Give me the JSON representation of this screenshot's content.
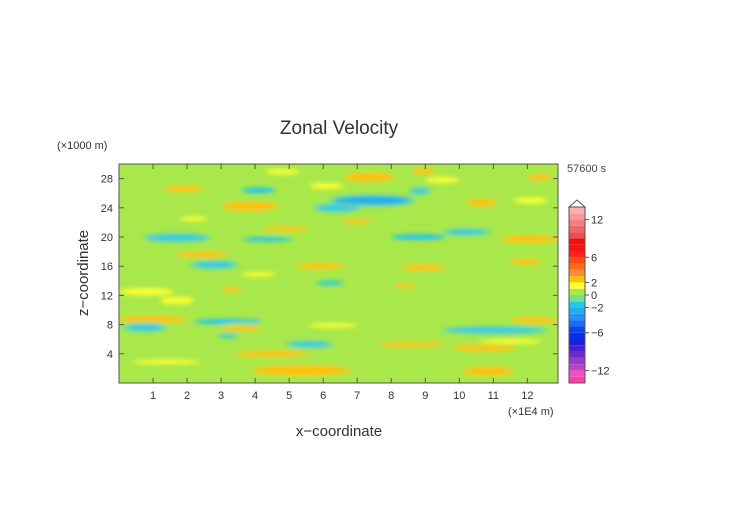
{
  "chart_data": {
    "type": "heatmap",
    "title": "Zonal Velocity",
    "xlabel": "x−coordinate",
    "ylabel": "z−coordinate",
    "x_unit": "(×1E4 m)",
    "y_unit": "(×1000 m)",
    "time_label": "57600 s",
    "x_ticks": [
      "1",
      "2",
      "3",
      "4",
      "5",
      "6",
      "7",
      "8",
      "9",
      "10",
      "11",
      "12"
    ],
    "y_ticks": [
      "4",
      "8",
      "12",
      "16",
      "20",
      "24",
      "28"
    ],
    "xlim": [
      0,
      12.9
    ],
    "ylim": [
      0,
      30
    ],
    "colorbar": {
      "ticks": [
        "12",
        "6",
        "2",
        "0",
        "−2",
        "−6",
        "−12"
      ],
      "tick_values": [
        12,
        6,
        2,
        0,
        -2,
        -6,
        -12
      ],
      "range": [
        -14,
        14
      ],
      "levels": [
        -14,
        -13,
        -12,
        -11,
        -10,
        -9,
        -8,
        -7,
        -6,
        -5,
        -4,
        -3,
        -2,
        -1,
        0,
        1,
        2,
        3,
        4,
        5,
        6,
        7,
        8,
        9,
        10,
        11,
        12,
        13,
        14
      ],
      "colors": [
        "#ff3fb0",
        "#f050c0",
        "#c040c8",
        "#9040c0",
        "#6a2ccc",
        "#4b1fd0",
        "#1a1fe0",
        "#0d2ee8",
        "#0a45ec",
        "#1a6cf0",
        "#2a8ff0",
        "#1eaef0",
        "#24c8e8",
        "#79e08a",
        "#a9e84a",
        "#ffff33",
        "#ffc000",
        "#ff8b3a",
        "#ff6a1a",
        "#ff4a10",
        "#ff2020",
        "#ff1010",
        "#ee1010",
        "#e85050",
        "#ec6868",
        "#f08080",
        "#f59898",
        "#fab0b0"
      ]
    },
    "bands": [
      {
        "x": [
          3.9,
          6.8
        ],
        "z": [
          1.0,
          2.4
        ],
        "value": 2.6
      },
      {
        "x": [
          10.1,
          11.6
        ],
        "z": [
          1.0,
          2.2
        ],
        "value": 2.4
      },
      {
        "x": [
          0.0,
          1.2
        ],
        "z": [
          0.5,
          1.5
        ],
        "value": 0.6
      },
      {
        "x": [
          0.4,
          2.4
        ],
        "z": [
          2.6,
          3.2
        ],
        "value": 1.4
      },
      {
        "x": [
          3.4,
          5.6
        ],
        "z": [
          3.6,
          4.4
        ],
        "value": 2.4
      },
      {
        "x": [
          5.0,
          6.2
        ],
        "z": [
          5.0,
          5.6
        ],
        "value": -1.8
      },
      {
        "x": [
          7.6,
          9.6
        ],
        "z": [
          5.0,
          5.6
        ],
        "value": 2.4
      },
      {
        "x": [
          9.8,
          11.7
        ],
        "z": [
          4.4,
          5.2
        ],
        "value": 2.3
      },
      {
        "x": [
          10.6,
          12.4
        ],
        "z": [
          5.4,
          6.0
        ],
        "value": 1.3
      },
      {
        "x": [
          0.0,
          2.0
        ],
        "z": [
          8.2,
          9.2
        ],
        "value": 2.6
      },
      {
        "x": [
          0.2,
          1.3
        ],
        "z": [
          7.2,
          8.0
        ],
        "value": -1.6
      },
      {
        "x": [
          2.2,
          4.2
        ],
        "z": [
          8.0,
          8.8
        ],
        "value": -1.5
      },
      {
        "x": [
          3.0,
          4.2
        ],
        "z": [
          7.2,
          7.8
        ],
        "value": 2.4
      },
      {
        "x": [
          5.6,
          7.0
        ],
        "z": [
          7.6,
          8.2
        ],
        "value": 1.5
      },
      {
        "x": [
          9.6,
          12.5
        ],
        "z": [
          6.9,
          7.6
        ],
        "value": -1.6
      },
      {
        "x": [
          11.5,
          12.9
        ],
        "z": [
          8.2,
          9.0
        ],
        "value": 2.4
      },
      {
        "x": [
          2.9,
          3.5
        ],
        "z": [
          6.2,
          6.7
        ],
        "value": -1.5
      },
      {
        "x": [
          1.2,
          2.2
        ],
        "z": [
          10.8,
          11.8
        ],
        "value": 1.4
      },
      {
        "x": [
          0.0,
          1.6
        ],
        "z": [
          12.0,
          13.0
        ],
        "value": 1.4
      },
      {
        "x": [
          3.0,
          3.6
        ],
        "z": [
          12.5,
          13.1
        ],
        "value": 2.4
      },
      {
        "x": [
          8.1,
          8.7
        ],
        "z": [
          13.0,
          13.6
        ],
        "value": 2.3
      },
      {
        "x": [
          5.8,
          6.6
        ],
        "z": [
          13.4,
          14.0
        ],
        "value": -1.5
      },
      {
        "x": [
          2.2,
          3.4
        ],
        "z": [
          15.8,
          16.6
        ],
        "value": -1.6
      },
      {
        "x": [
          5.2,
          6.6
        ],
        "z": [
          15.6,
          16.4
        ],
        "value": 2.4
      },
      {
        "x": [
          3.6,
          4.6
        ],
        "z": [
          14.6,
          15.2
        ],
        "value": 1.3
      },
      {
        "x": [
          1.7,
          3.2
        ],
        "z": [
          17.2,
          18.0
        ],
        "value": 2.3
      },
      {
        "x": [
          8.3,
          9.6
        ],
        "z": [
          15.4,
          16.2
        ],
        "value": 2.2
      },
      {
        "x": [
          11.5,
          12.4
        ],
        "z": [
          16.2,
          17.0
        ],
        "value": 2.3
      },
      {
        "x": [
          0.8,
          2.6
        ],
        "z": [
          19.5,
          20.3
        ],
        "value": -1.6
      },
      {
        "x": [
          3.6,
          5.1
        ],
        "z": [
          19.4,
          20.0
        ],
        "value": -1.5
      },
      {
        "x": [
          8.0,
          9.6
        ],
        "z": [
          19.6,
          20.4
        ],
        "value": -1.5
      },
      {
        "x": [
          11.2,
          12.9
        ],
        "z": [
          19.2,
          20.2
        ],
        "value": 2.2
      },
      {
        "x": [
          4.2,
          5.6
        ],
        "z": [
          20.8,
          21.4
        ],
        "value": 2.3
      },
      {
        "x": [
          9.6,
          10.8
        ],
        "z": [
          20.4,
          21.0
        ],
        "value": -1.6
      },
      {
        "x": [
          6.6,
          7.4
        ],
        "z": [
          21.8,
          22.4
        ],
        "value": 2.3
      },
      {
        "x": [
          1.8,
          2.6
        ],
        "z": [
          22.2,
          22.8
        ],
        "value": 1.3
      },
      {
        "x": [
          3.0,
          4.7
        ],
        "z": [
          23.6,
          24.8
        ],
        "value": 2.4
      },
      {
        "x": [
          5.8,
          7.0
        ],
        "z": [
          23.6,
          24.4
        ],
        "value": -1.6
      },
      {
        "x": [
          6.3,
          8.6
        ],
        "z": [
          24.4,
          25.6
        ],
        "value": -2.2
      },
      {
        "x": [
          10.2,
          11.1
        ],
        "z": [
          24.2,
          25.2
        ],
        "value": 2.3
      },
      {
        "x": [
          11.6,
          12.6
        ],
        "z": [
          24.6,
          25.4
        ],
        "value": 1.4
      },
      {
        "x": [
          1.3,
          2.5
        ],
        "z": [
          26.2,
          27.0
        ],
        "value": 2.4
      },
      {
        "x": [
          3.6,
          4.6
        ],
        "z": [
          26.0,
          26.8
        ],
        "value": -1.5
      },
      {
        "x": [
          5.6,
          6.6
        ],
        "z": [
          26.6,
          27.4
        ],
        "value": 1.3
      },
      {
        "x": [
          6.6,
          8.1
        ],
        "z": [
          27.6,
          28.8
        ],
        "value": 2.5
      },
      {
        "x": [
          8.6,
          9.1
        ],
        "z": [
          26.0,
          26.6
        ],
        "value": -1.6
      },
      {
        "x": [
          9.0,
          10.0
        ],
        "z": [
          27.4,
          28.2
        ],
        "value": 1.3
      },
      {
        "x": [
          4.3,
          5.3
        ],
        "z": [
          28.6,
          29.3
        ],
        "value": 1.3
      },
      {
        "x": [
          8.6,
          9.3
        ],
        "z": [
          28.6,
          29.4
        ],
        "value": 2.2
      },
      {
        "x": [
          12.0,
          12.7
        ],
        "z": [
          27.8,
          28.6
        ],
        "value": 2.3
      }
    ]
  }
}
